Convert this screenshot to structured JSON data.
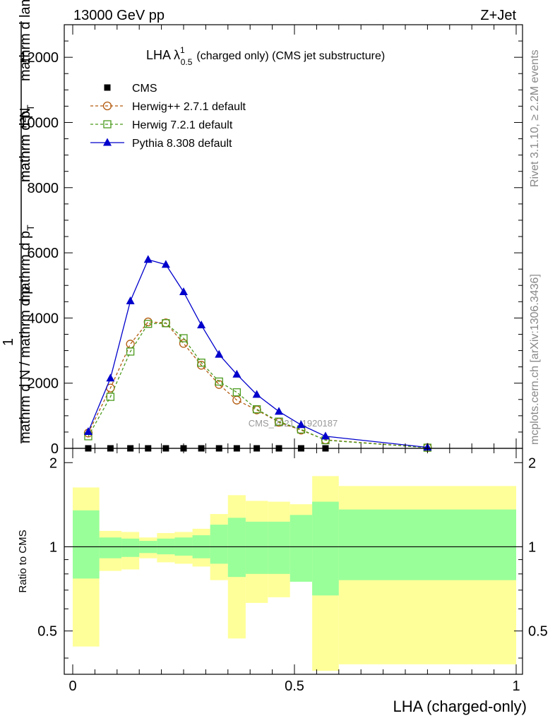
{
  "header": {
    "left": "13000 GeV pp",
    "right": "Z+Jet"
  },
  "side_labels": {
    "rivet": "Rivet 3.1.10, ≥ 2.2M events",
    "mcplots": "mcplots.cern.ch [arXiv:1306.3436]"
  },
  "chart_data": [
    {
      "type": "line",
      "title": "LHA λ",
      "title_sup": "1",
      "title_sub": "0.5",
      "title_rest": "(charged only) (CMS jet substructure)",
      "ylabel_top": "mathrm d²N",
      "ylabel_top2": "mathrm d p",
      "ylabel_top2_sub": "T",
      "ylabel_top3": "mathrm d lambda",
      "ylabel_one": "1",
      "ylabel_bottom": "mathrm d N / mathrm d p",
      "ylabel_bottom2": "mathrm d p",
      "ylabel_bottom2_sub": "T",
      "xlabel": "",
      "xlim": [
        0,
        1
      ],
      "ylim": [
        0,
        13000
      ],
      "yticks": [
        0,
        2000,
        4000,
        6000,
        8000,
        10000,
        12000
      ],
      "ytick_labels": [
        "0",
        "2000",
        "4000",
        "6000",
        "8000",
        "10000",
        "12000"
      ],
      "watermark": "CMS_2021_I1920187",
      "legend_position": "top-left",
      "series": [
        {
          "name": "CMS",
          "color": "#000000",
          "marker": "square-filled",
          "x": [
            0.035,
            0.085,
            0.13,
            0.17,
            0.21,
            0.25,
            0.29,
            0.33,
            0.37,
            0.415,
            0.465,
            0.515,
            0.57
          ],
          "y": [
            0,
            0,
            0,
            0,
            0,
            0,
            0,
            0,
            0,
            0,
            0,
            0,
            0
          ]
        },
        {
          "name": "Herwig++ 2.7.1 default",
          "color": "#b35a0e",
          "marker": "circle-open",
          "dash": true,
          "x": [
            0.035,
            0.085,
            0.13,
            0.17,
            0.21,
            0.25,
            0.29,
            0.33,
            0.37,
            0.415,
            0.465,
            0.515,
            0.57,
            0.8
          ],
          "y": [
            470,
            1850,
            3200,
            3880,
            3850,
            3220,
            2550,
            1960,
            1480,
            1180,
            800,
            560,
            260,
            25
          ]
        },
        {
          "name": "Herwig 7.2.1 default",
          "color": "#4a9a1c",
          "marker": "square-open",
          "dash": true,
          "x": [
            0.035,
            0.085,
            0.13,
            0.17,
            0.21,
            0.25,
            0.29,
            0.33,
            0.37,
            0.415,
            0.465,
            0.515,
            0.57,
            0.8
          ],
          "y": [
            370,
            1580,
            2970,
            3820,
            3840,
            3380,
            2630,
            2050,
            1720,
            1200,
            820,
            580,
            250,
            20
          ]
        },
        {
          "name": "Pythia 8.308 default",
          "color": "#0000cc",
          "marker": "triangle-filled",
          "dash": false,
          "x": [
            0.035,
            0.085,
            0.13,
            0.17,
            0.21,
            0.25,
            0.29,
            0.33,
            0.37,
            0.415,
            0.465,
            0.515,
            0.57,
            0.8
          ],
          "y": [
            510,
            2150,
            4520,
            5790,
            5640,
            4800,
            3780,
            2880,
            2270,
            1650,
            1130,
            720,
            370,
            30
          ]
        }
      ]
    },
    {
      "type": "area",
      "title": "",
      "xlabel": "LHA (charged-only)",
      "ylabel": "Ratio to CMS",
      "xlim": [
        0,
        1
      ],
      "ylim": [
        0.35,
        2.25
      ],
      "xticks": [
        0,
        0.5,
        1
      ],
      "xtick_labels": [
        "0",
        "0.5",
        "1"
      ],
      "yticks": [
        0.5,
        1,
        2
      ],
      "ytick_labels": [
        "0.5",
        "1",
        "2"
      ],
      "reference_line": 1,
      "bin_edges": [
        0.0,
        0.06,
        0.11,
        0.15,
        0.19,
        0.23,
        0.27,
        0.31,
        0.35,
        0.39,
        0.44,
        0.49,
        0.54,
        0.6,
        1.0
      ],
      "series": [
        {
          "name": "",
          "color": "#ffff99",
          "lower": [
            0.44,
            0.82,
            0.83,
            0.91,
            0.88,
            0.87,
            0.85,
            0.76,
            0.47,
            0.63,
            0.66,
            0.87,
            0.36,
            0.38
          ],
          "upper": [
            1.63,
            1.14,
            1.13,
            1.08,
            1.12,
            1.13,
            1.16,
            1.31,
            1.53,
            1.46,
            1.45,
            1.42,
            1.79,
            1.65
          ]
        },
        {
          "name": "",
          "color": "#99ff99",
          "lower": [
            0.77,
            0.91,
            0.92,
            0.95,
            0.94,
            0.93,
            0.91,
            0.87,
            0.78,
            0.8,
            0.8,
            0.75,
            0.67,
            0.76
          ],
          "upper": [
            1.35,
            1.08,
            1.07,
            1.05,
            1.07,
            1.08,
            1.1,
            1.2,
            1.27,
            1.23,
            1.23,
            1.3,
            1.45,
            1.36
          ]
        }
      ]
    }
  ]
}
